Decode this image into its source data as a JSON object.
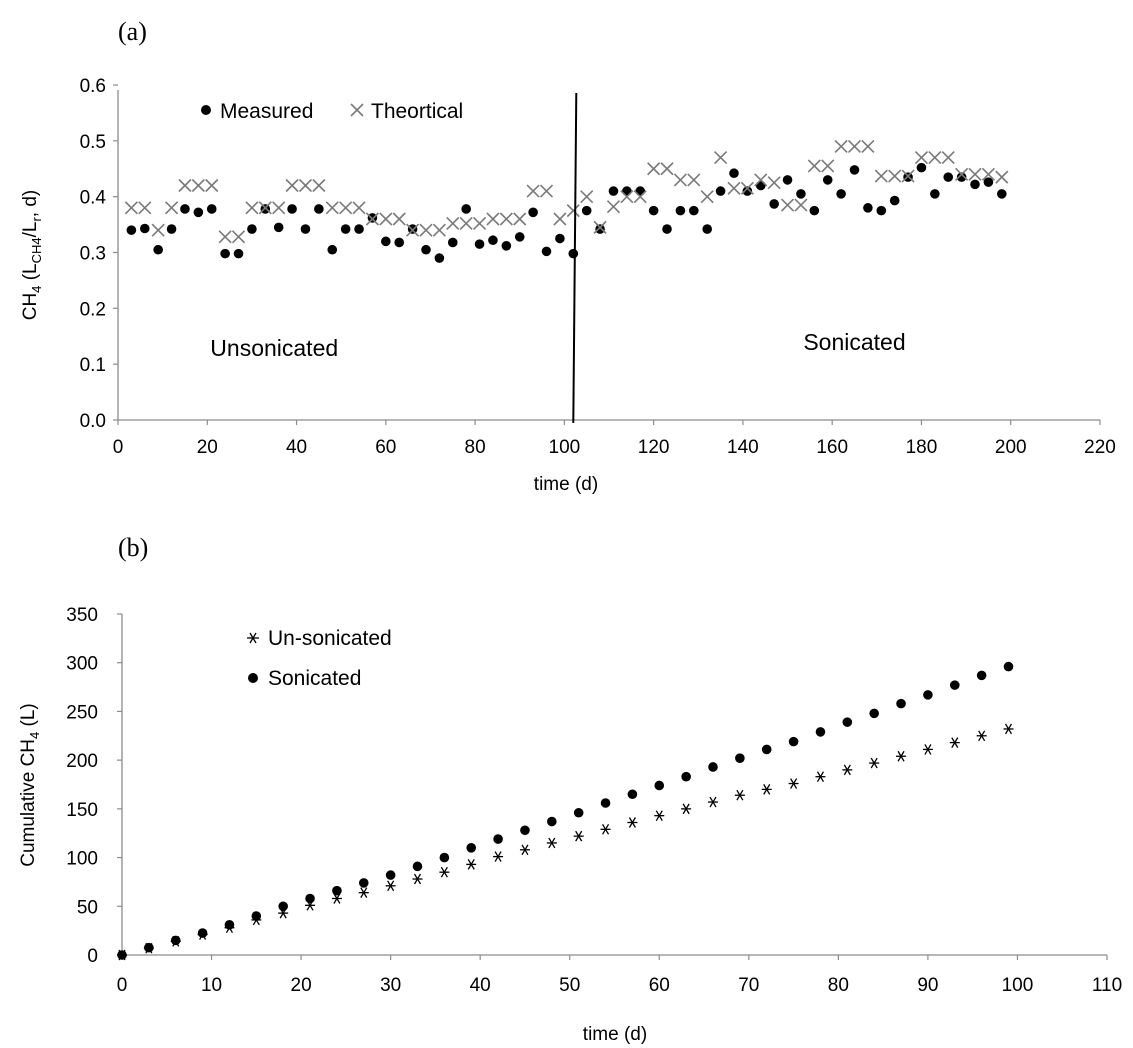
{
  "panel_labels": {
    "a": "(a)",
    "b": "(b)"
  },
  "chart_data": [
    {
      "type": "scatter",
      "xlim": [
        0,
        220
      ],
      "ylim": [
        0,
        0.6
      ],
      "xticks": [
        0,
        20,
        40,
        60,
        80,
        100,
        120,
        140,
        160,
        180,
        200,
        220
      ],
      "yticks": [
        "0.0",
        "0.1",
        "0.2",
        "0.3",
        "0.4",
        "0.5",
        "0.6"
      ],
      "xlabel": "time (d)",
      "ylabel": "CH4 (LCH4/Lr, d)",
      "legend_position": "top-left",
      "grid": false,
      "divider_x": 102,
      "annotations": [
        {
          "text": "Unsonicated",
          "x": 35,
          "y": 0.115
        },
        {
          "text": "Sonicated",
          "x": 165,
          "y": 0.125
        }
      ],
      "x": [
        3,
        6,
        9,
        12,
        15,
        18,
        21,
        24,
        27,
        30,
        33,
        36,
        39,
        42,
        45,
        48,
        51,
        54,
        57,
        60,
        63,
        66,
        69,
        72,
        75,
        78,
        81,
        84,
        87,
        90,
        93,
        96,
        99,
        102,
        105,
        108,
        111,
        114,
        117,
        120,
        123,
        126,
        129,
        132,
        135,
        138,
        141,
        144,
        147,
        150,
        153,
        156,
        159,
        162,
        165,
        168,
        171,
        174,
        177,
        180,
        183,
        186,
        189,
        192,
        195,
        198
      ],
      "series": [
        {
          "name": "Measured",
          "marker": "dot",
          "values": [
            0.34,
            0.343,
            0.305,
            0.342,
            0.378,
            0.372,
            0.378,
            0.298,
            0.298,
            0.342,
            0.378,
            0.345,
            0.378,
            0.342,
            0.378,
            0.305,
            0.342,
            0.342,
            0.362,
            0.32,
            0.318,
            0.342,
            0.305,
            0.29,
            0.318,
            0.378,
            0.315,
            0.322,
            0.312,
            0.328,
            0.372,
            0.302,
            0.325,
            0.298,
            0.375,
            0.342,
            0.41,
            0.41,
            0.41,
            0.375,
            0.342,
            0.375,
            0.375,
            0.342,
            0.41,
            0.442,
            0.41,
            0.42,
            0.387,
            0.43,
            0.405,
            0.375,
            0.43,
            0.405,
            0.448,
            0.38,
            0.375,
            0.393,
            0.435,
            0.452,
            0.405,
            0.435,
            0.435,
            0.422,
            0.426,
            0.405
          ]
        },
        {
          "name": "Theortical",
          "marker": "x",
          "values": [
            0.38,
            0.38,
            0.34,
            0.38,
            0.42,
            0.42,
            0.42,
            0.328,
            0.328,
            0.38,
            0.38,
            0.38,
            0.42,
            0.42,
            0.42,
            0.38,
            0.38,
            0.38,
            0.36,
            0.36,
            0.36,
            0.34,
            0.34,
            0.34,
            0.352,
            0.352,
            0.352,
            0.36,
            0.36,
            0.36,
            0.41,
            0.41,
            0.36,
            0.375,
            0.4,
            0.345,
            0.382,
            0.4,
            0.4,
            0.45,
            0.45,
            0.43,
            0.43,
            0.4,
            0.47,
            0.415,
            0.415,
            0.43,
            0.425,
            0.385,
            0.385,
            0.455,
            0.455,
            0.49,
            0.49,
            0.49,
            0.437,
            0.437,
            0.437,
            0.47,
            0.47,
            0.47,
            0.44,
            0.44,
            0.44,
            0.435
          ]
        }
      ]
    },
    {
      "type": "scatter",
      "xlim": [
        0,
        110
      ],
      "ylim": [
        0,
        350
      ],
      "xticks": [
        0,
        10,
        20,
        30,
        40,
        50,
        60,
        70,
        80,
        90,
        100,
        110
      ],
      "yticks": [
        "0",
        "50",
        "100",
        "150",
        "200",
        "250",
        "300",
        "350"
      ],
      "xlabel": "time (d)",
      "ylabel": "Cumulative CH4 (L)",
      "legend_position": "top-left",
      "grid": false,
      "x": [
        0,
        3,
        6,
        9,
        12,
        15,
        18,
        21,
        24,
        27,
        30,
        33,
        36,
        39,
        42,
        45,
        48,
        51,
        54,
        57,
        60,
        63,
        66,
        69,
        72,
        75,
        78,
        81,
        84,
        87,
        90,
        93,
        96,
        99
      ],
      "series": [
        {
          "name": "Un-sonicated",
          "marker": "star",
          "values": [
            0,
            7,
            14,
            21,
            28,
            36,
            43,
            51,
            58,
            64,
            71,
            78,
            85,
            93,
            101,
            108,
            115,
            122,
            129,
            136,
            143,
            150,
            157,
            164,
            170,
            176,
            183,
            190,
            197,
            204,
            211,
            218,
            225,
            232
          ]
        },
        {
          "name": "Sonicated",
          "marker": "dot",
          "values": [
            0,
            7.5,
            15,
            22.5,
            31,
            40,
            50,
            58,
            66,
            74,
            82,
            91,
            100,
            110,
            119,
            128,
            137,
            146,
            156,
            165,
            174,
            183,
            193,
            202,
            211,
            219,
            229,
            239,
            248,
            258,
            267,
            277,
            287,
            296
          ]
        }
      ]
    }
  ]
}
